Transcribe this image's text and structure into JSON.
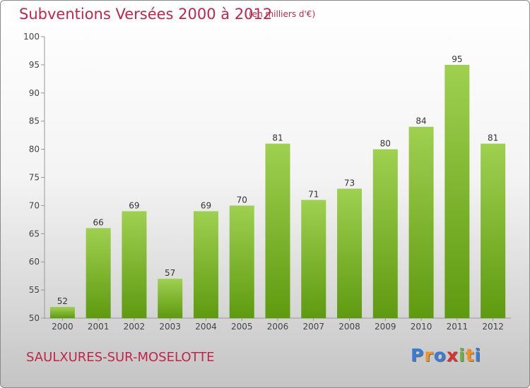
{
  "header": {
    "title": "Subventions Versées 2000 à 2012",
    "subtitle": "(en milliers d'€)"
  },
  "footer": {
    "place": "SAULXURES-SUR-MOSELOTTE",
    "logo_letters": [
      "P",
      "r",
      "o",
      "x",
      "i",
      "t",
      "i"
    ],
    "logo_colors": [
      "#3a7bd5",
      "#f29222",
      "#3a7bd5",
      "#d8322e",
      "#6cb33f",
      "#f29222",
      "#3a7bd5"
    ]
  },
  "chart_data": {
    "type": "bar",
    "title": "Subventions Versées 2000 à 2012",
    "subtitle": "(en milliers d'€)",
    "categories": [
      "2000",
      "2001",
      "2002",
      "2003",
      "2004",
      "2005",
      "2006",
      "2007",
      "2008",
      "2009",
      "2010",
      "2011",
      "2012"
    ],
    "values": [
      52,
      66,
      69,
      57,
      69,
      70,
      81,
      71,
      73,
      80,
      84,
      95,
      81
    ],
    "ylim": [
      50,
      100
    ],
    "yticks": [
      50,
      55,
      60,
      65,
      70,
      75,
      80,
      85,
      90,
      95,
      100
    ],
    "grid": false,
    "bar_color_top": "#9fd050",
    "bar_color_bottom": "#5e9a10"
  }
}
